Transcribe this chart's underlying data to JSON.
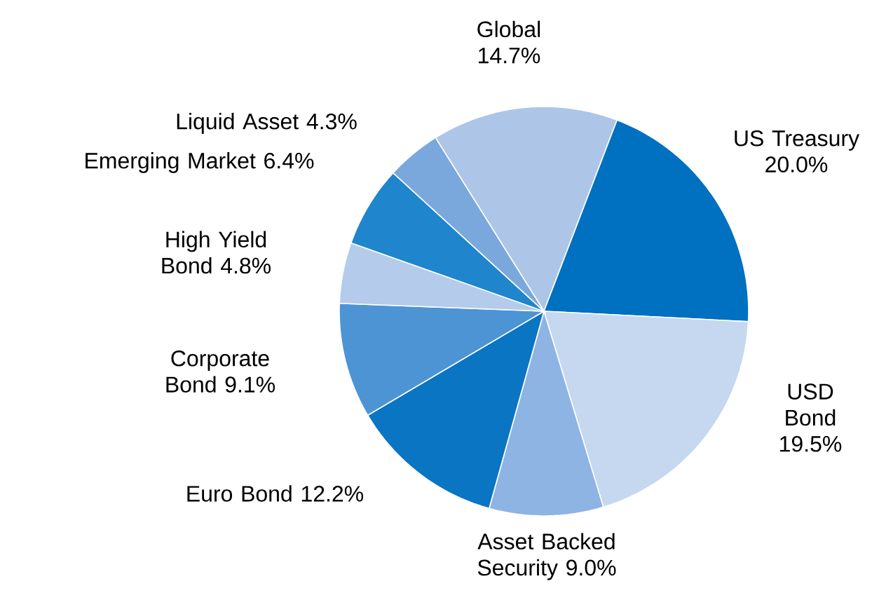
{
  "chart_data": {
    "type": "pie",
    "categories": [
      "Global",
      "US Treasury",
      "USD Bond",
      "Asset Backed Security",
      "Euro Bond",
      "Corporate Bond",
      "High Yield Bond",
      "Emerging Market",
      "Liquid Asset"
    ],
    "values": [
      14.7,
      20.0,
      19.5,
      9.0,
      12.2,
      9.1,
      4.8,
      6.4,
      4.3
    ],
    "value_labels": [
      "14.7%",
      "20.0%",
      "19.5%",
      "9.0%",
      "12.2%",
      "9.1%",
      "4.8%",
      "6.4%",
      "4.3%"
    ],
    "colors": [
      "#adc6e8",
      "#0070c0",
      "#c6d7f0",
      "#8eb4e3",
      "#0a75c2",
      "#4d94d4",
      "#b4cbeb",
      "#1f85cc",
      "#7aa8dc"
    ]
  }
}
